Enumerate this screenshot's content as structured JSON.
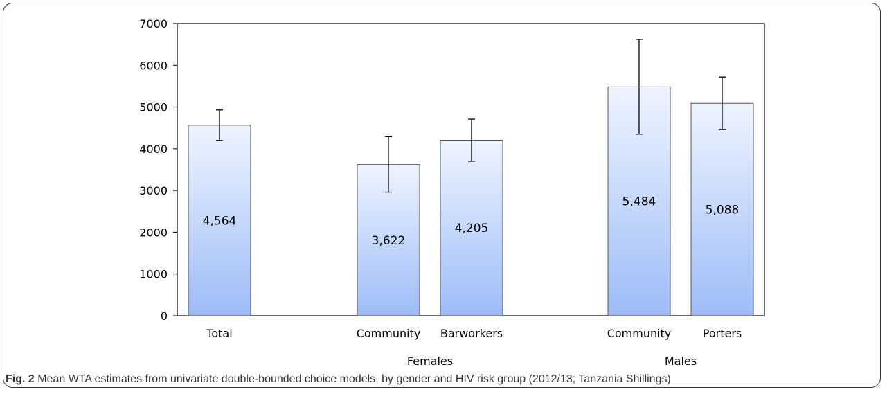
{
  "chart_data": {
    "type": "bar",
    "categories": [
      "Total",
      "Community",
      "Barworkers",
      "Community",
      "Porters"
    ],
    "groups": [
      {
        "label": "",
        "members": [
          0
        ]
      },
      {
        "label": "Females",
        "members": [
          1,
          2
        ]
      },
      {
        "label": "Males",
        "members": [
          3,
          4
        ]
      }
    ],
    "values": [
      4564,
      3622,
      4205,
      5484,
      5088
    ],
    "value_labels": [
      "4,564",
      "3,622",
      "4,205",
      "5,484",
      "5,088"
    ],
    "error_bars": [
      [
        4200,
        4930
      ],
      [
        2960,
        4290
      ],
      [
        3700,
        4710
      ],
      [
        4350,
        6620
      ],
      [
        4460,
        5720
      ]
    ],
    "ylim": [
      0,
      7000
    ],
    "yticks": [
      0,
      1000,
      2000,
      3000,
      4000,
      5000,
      6000,
      7000
    ],
    "grid": false,
    "bar_gradient": [
      "#eef4ff",
      "#9dbcf7"
    ]
  },
  "caption": {
    "fig_label": "Fig. 2",
    "text": " Mean WTA estimates from univariate double-bounded choice models, by gender and HIV risk group (2012/13; Tanzania Shillings)"
  }
}
